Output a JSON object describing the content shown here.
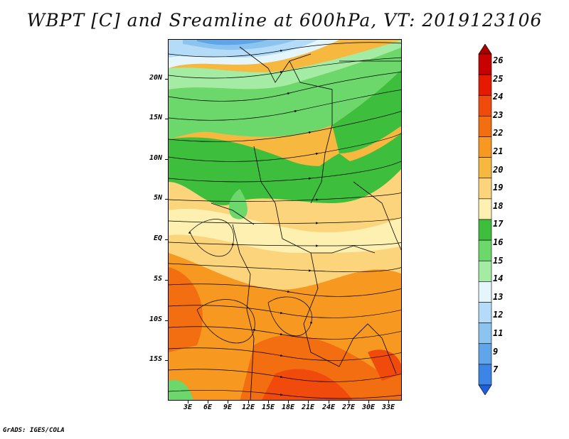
{
  "title": "WBPT [C] and Sreamline at 600hPa, VT: 2019123106",
  "credit": "GrADS: IGES/COLA",
  "lat_labels": [
    "20N",
    "15N",
    "10N",
    "5N",
    "EQ",
    "5S",
    "10S",
    "15S"
  ],
  "lon_labels": [
    "3E",
    "6E",
    "9E",
    "12E",
    "15E",
    "18E",
    "21E",
    "24E",
    "27E",
    "30E",
    "33E"
  ],
  "colorbar": {
    "labels": [
      "26",
      "25",
      "24",
      "23",
      "22",
      "21",
      "20",
      "19",
      "18",
      "17",
      "16",
      "15",
      "14",
      "13",
      "12",
      "11",
      "9",
      "7"
    ],
    "colors": [
      "#a50000",
      "#c80000",
      "#e61a00",
      "#f04a0c",
      "#f36e10",
      "#f79820",
      "#f7b840",
      "#fcd47c",
      "#fdf0b0",
      "#3dbe3d",
      "#6cd86c",
      "#a4eba4",
      "#e4f6fc",
      "#b4dcf8",
      "#8cc4f0",
      "#60a4ea",
      "#3c84e6",
      "#1e60dc"
    ]
  }
}
